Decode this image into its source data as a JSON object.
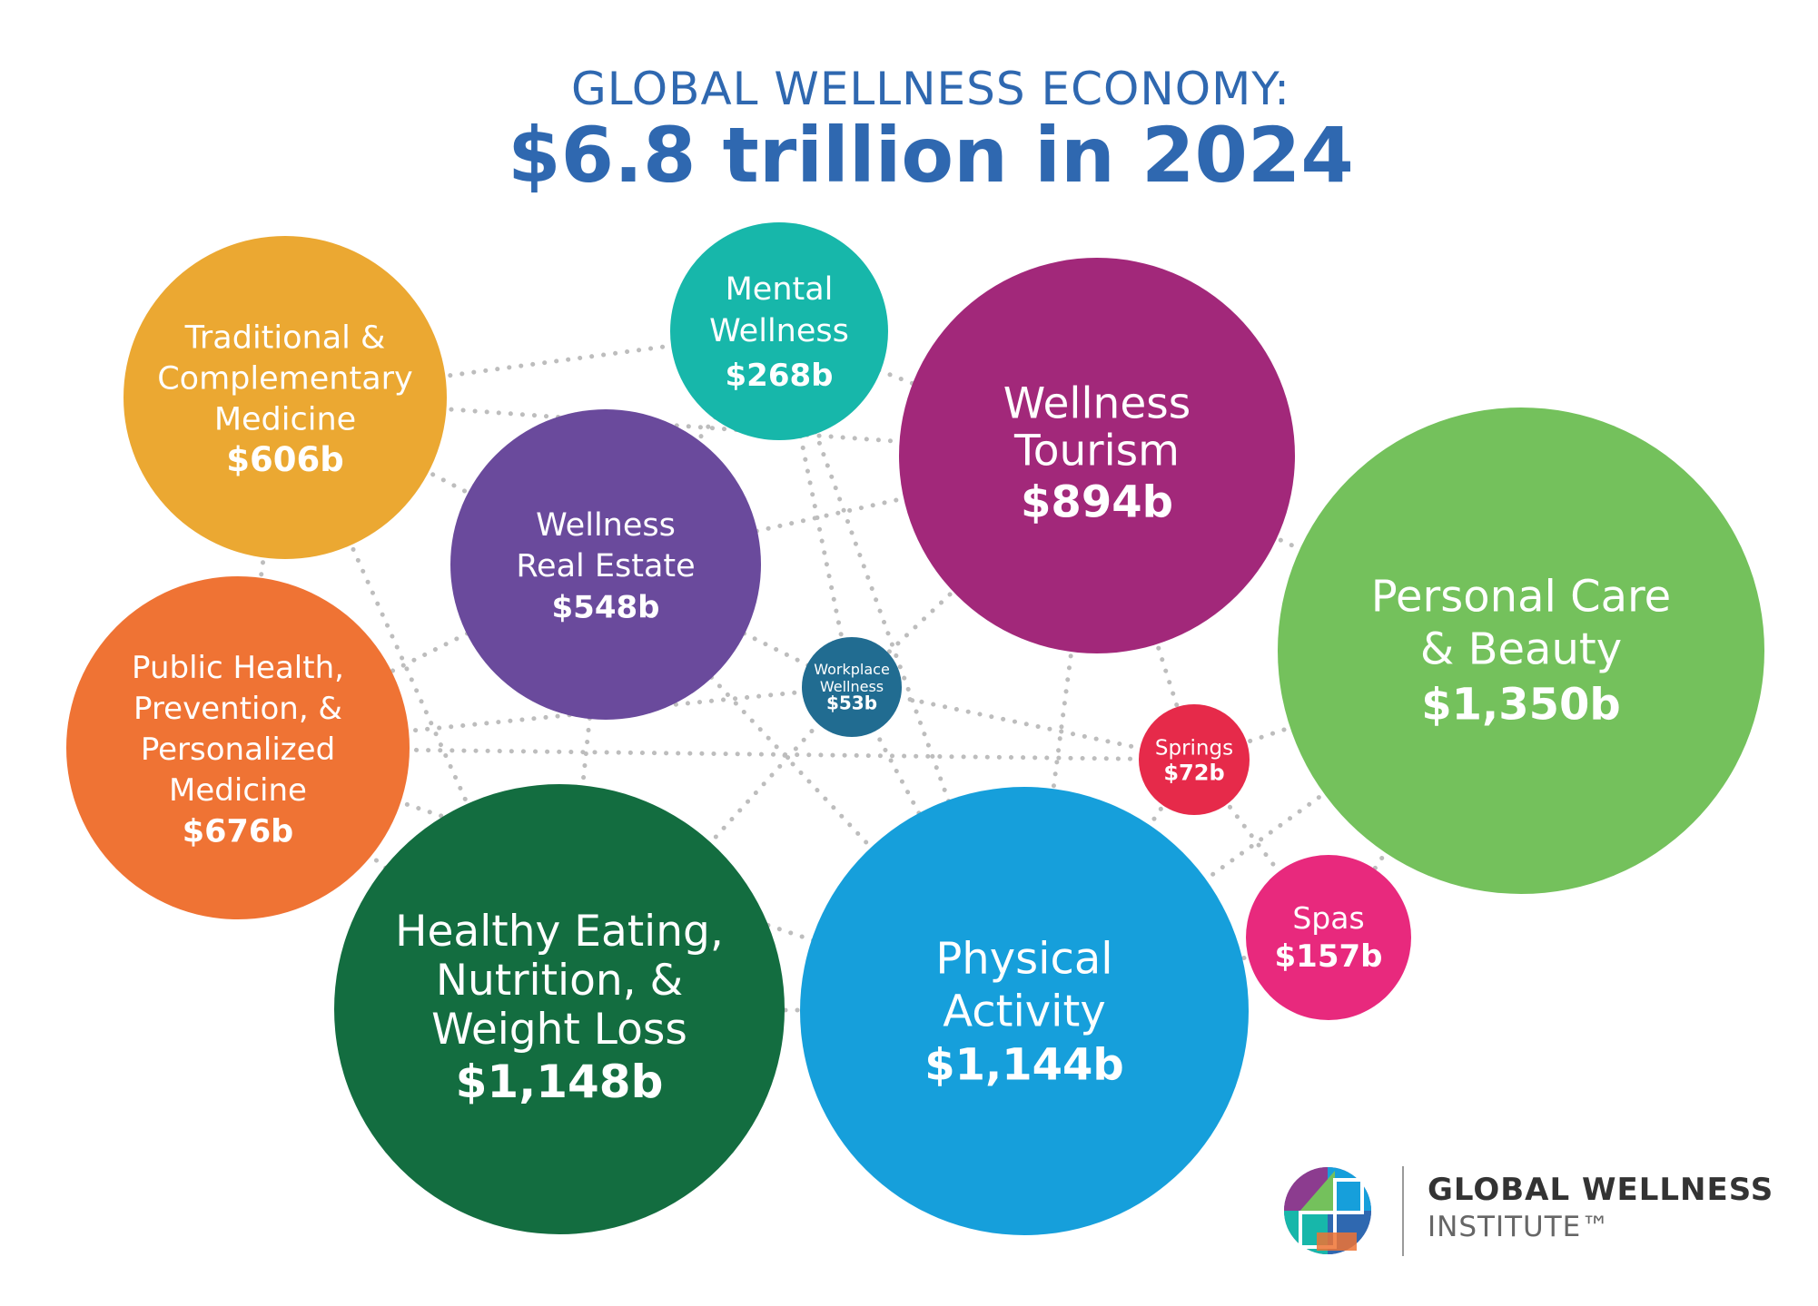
{
  "chart_data": {
    "type": "bubble",
    "title": "GLOBAL WELLNESS ECONOMY:",
    "subtitle": "$6.8 trillion in 2024",
    "unit": "billions USD",
    "bubbles": [
      {
        "name_lines": [
          "Traditional &",
          "Complementary",
          "Medicine"
        ],
        "label": "$606b",
        "value": 606,
        "color": "#EBA832"
      },
      {
        "name_lines": [
          "Mental",
          "Wellness"
        ],
        "label": "$268b",
        "value": 268,
        "color": "#17B7AA"
      },
      {
        "name_lines": [
          "Wellness",
          "Tourism"
        ],
        "label": "$894b",
        "value": 894,
        "color": "#A2287A"
      },
      {
        "name_lines": [
          "Wellness",
          "Real Estate"
        ],
        "label": "$548b",
        "value": 548,
        "color": "#6A4A9C"
      },
      {
        "name_lines": [
          "Personal Care",
          "& Beauty"
        ],
        "label": "$1,350b",
        "value": 1350,
        "color": "#74C15C"
      },
      {
        "name_lines": [
          "Public Health,",
          "Prevention, &",
          "Personalized",
          "Medicine"
        ],
        "label": "$676b",
        "value": 676,
        "color": "#EF7334"
      },
      {
        "name_lines": [
          "Workplace",
          "Wellness"
        ],
        "label": "$53b",
        "value": 53,
        "color": "#216C91"
      },
      {
        "name_lines": [
          "Springs"
        ],
        "label": "$72b",
        "value": 72,
        "color": "#E62A4A"
      },
      {
        "name_lines": [
          "Healthy Eating,",
          "Nutrition, &",
          "Weight Loss"
        ],
        "label": "$1,148b",
        "value": 1148,
        "color": "#136D40"
      },
      {
        "name_lines": [
          "Physical",
          "Activity"
        ],
        "label": "$1,144b",
        "value": 1144,
        "color": "#169FDB"
      },
      {
        "name_lines": [
          "Spas"
        ],
        "label": "$157b",
        "value": 157,
        "color": "#E8297D"
      }
    ]
  },
  "logo": {
    "name_top": "GLOBAL WELLNESS",
    "name_bottom": "INSTITUTE™"
  }
}
